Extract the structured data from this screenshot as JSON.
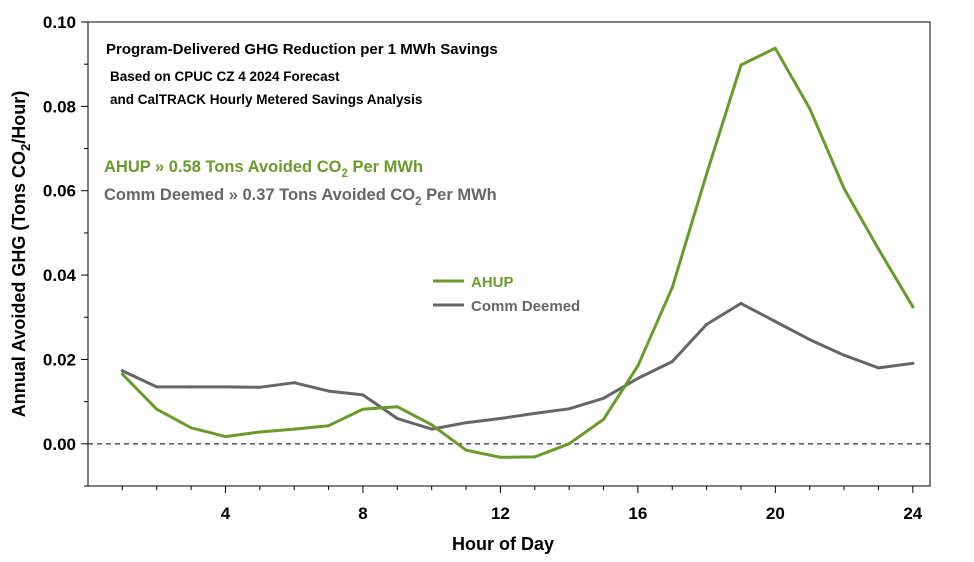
{
  "chart_data": {
    "type": "line",
    "title": "Program-Delivered GHG Reduction per 1 MWh Savings",
    "subtitle_lines": [
      "Based on CPUC CZ 4 2024 Forecast",
      "and CalTRACK Hourly Metered Savings Analysis"
    ],
    "annotations": [
      {
        "prefix": "AHUP » 0.58 Tons Avoided CO",
        "sub": "2",
        "suffix": " Per MWh",
        "color": "#6a9a2c"
      },
      {
        "prefix": "Comm Deemed » 0.37 Tons Avoided CO",
        "sub": "2",
        "suffix": " Per MWh",
        "color": "#666666"
      }
    ],
    "xlabel": "Hour of Day",
    "ylabel": {
      "prefix": "Annual Avoided GHG (Tons CO",
      "sub": "2",
      "suffix": "/Hour)"
    },
    "xlim": [
      0,
      24.5
    ],
    "ylim": [
      -0.01,
      0.1
    ],
    "x_ticks": [
      4,
      8,
      12,
      16,
      20,
      24
    ],
    "x_tick_labels": [
      "4",
      "8",
      "12",
      "16",
      "20",
      "24"
    ],
    "x_minor_ticks": [
      1,
      2,
      3,
      5,
      6,
      7,
      9,
      10,
      11,
      13,
      14,
      15,
      17,
      18,
      19,
      21,
      22,
      23
    ],
    "y_ticks": [
      0,
      0.02,
      0.04,
      0.06,
      0.08,
      0.1
    ],
    "y_tick_labels": [
      "0.00",
      "0.02",
      "0.04",
      "0.06",
      "0.08",
      "0.10"
    ],
    "y_minor_ticks": [
      -0.01,
      0.01,
      0.03,
      0.05,
      0.07,
      0.09
    ],
    "reference_line": {
      "y": 0,
      "style": "dashed"
    },
    "grid": false,
    "legend_position": "center",
    "x": [
      1,
      2,
      3,
      4,
      5,
      6,
      7,
      8,
      9,
      10,
      11,
      12,
      13,
      14,
      15,
      16,
      17,
      18,
      19,
      20,
      21,
      22,
      23,
      24
    ],
    "series": [
      {
        "name": "AHUP",
        "color": "#6a9a2c",
        "values": [
          0.0165,
          0.0082,
          0.0038,
          0.0017,
          0.0028,
          0.0035,
          0.0043,
          0.0082,
          0.0088,
          0.0045,
          -0.0015,
          -0.0032,
          -0.0031,
          0.0,
          0.0058,
          0.0185,
          0.037,
          0.064,
          0.0898,
          0.0938,
          0.0795,
          0.0605,
          0.0462,
          0.0325
        ]
      },
      {
        "name": "Comm Deemed",
        "color": "#666666",
        "values": [
          0.0173,
          0.0135,
          0.0135,
          0.0135,
          0.0134,
          0.0145,
          0.0125,
          0.0116,
          0.006,
          0.0035,
          0.005,
          0.006,
          0.0072,
          0.0083,
          0.0108,
          0.0155,
          0.0195,
          0.0283,
          0.0333,
          0.029,
          0.0247,
          0.021,
          0.018,
          0.0191
        ]
      }
    ]
  }
}
